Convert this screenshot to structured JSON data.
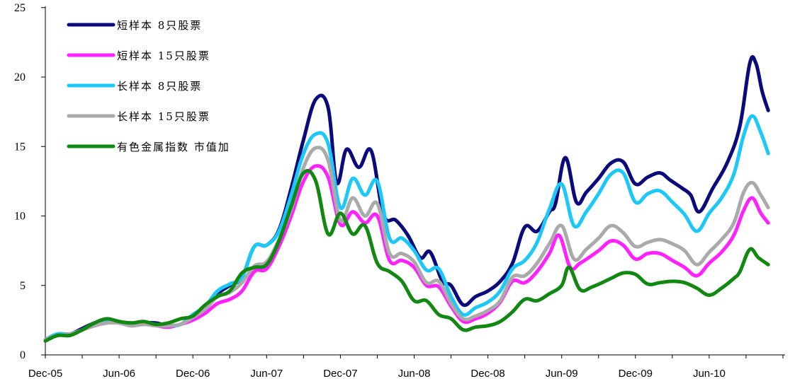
{
  "chart_data": {
    "type": "line",
    "title": "",
    "xlabel": "",
    "ylabel": "",
    "ylim": [
      0,
      25
    ],
    "yticks": [
      0,
      5,
      10,
      15,
      20,
      25
    ],
    "xlim": [
      0,
      60
    ],
    "x_ticks": [
      {
        "x": 0,
        "label": "Dec-05"
      },
      {
        "x": 6,
        "label": "Jun-06"
      },
      {
        "x": 12,
        "label": "Dec-06"
      },
      {
        "x": 18,
        "label": "Jun-07"
      },
      {
        "x": 24,
        "label": "Dec-07"
      },
      {
        "x": 30,
        "label": "Jun-08"
      },
      {
        "x": 36,
        "label": "Dec-08"
      },
      {
        "x": 42,
        "label": "Jun-09"
      },
      {
        "x": 48,
        "label": "Dec-09"
      },
      {
        "x": 54,
        "label": "Jun-10"
      }
    ],
    "x_unit": "months since Dec-05",
    "grid": false,
    "legend_position": "top-left",
    "series": [
      {
        "name": "短样本 8只股票",
        "color": "#0a0a7a",
        "points": [
          [
            0,
            1.1
          ],
          [
            1,
            1.5
          ],
          [
            2,
            1.5
          ],
          [
            3,
            1.9
          ],
          [
            4,
            2.3
          ],
          [
            5,
            2.5
          ],
          [
            6,
            2.4
          ],
          [
            7,
            2.2
          ],
          [
            8,
            2.3
          ],
          [
            9,
            2.3
          ],
          [
            10,
            2.1
          ],
          [
            11,
            2.2
          ],
          [
            12,
            2.7
          ],
          [
            13,
            3.5
          ],
          [
            14,
            4.4
          ],
          [
            15,
            5.0
          ],
          [
            16,
            5.6
          ],
          [
            17,
            7.8
          ],
          [
            18,
            7.9
          ],
          [
            19,
            9.0
          ],
          [
            20,
            12.0
          ],
          [
            21,
            15.5
          ],
          [
            22,
            18.4
          ],
          [
            23,
            17.8
          ],
          [
            23.7,
            12.4
          ],
          [
            24.5,
            14.8
          ],
          [
            25.5,
            13.5
          ],
          [
            26.5,
            14.7
          ],
          [
            27.5,
            10.1
          ],
          [
            28.5,
            9.7
          ],
          [
            29.5,
            8.6
          ],
          [
            30.5,
            7.0
          ],
          [
            31.3,
            7.4
          ],
          [
            32.3,
            5.3
          ],
          [
            33,
            5.0
          ],
          [
            34,
            3.6
          ],
          [
            35,
            4.2
          ],
          [
            36,
            4.6
          ],
          [
            37,
            5.3
          ],
          [
            38,
            6.6
          ],
          [
            39,
            9.2
          ],
          [
            40,
            8.9
          ],
          [
            41,
            10.3
          ],
          [
            41.5,
            10.9
          ],
          [
            42.3,
            14.2
          ],
          [
            43.2,
            11.0
          ],
          [
            44,
            11.7
          ],
          [
            45,
            12.7
          ],
          [
            46,
            13.8
          ],
          [
            47,
            13.9
          ],
          [
            48,
            12.3
          ],
          [
            49,
            12.8
          ],
          [
            50,
            13.1
          ],
          [
            50.8,
            12.6
          ],
          [
            51.8,
            12.0
          ],
          [
            52.5,
            11.5
          ],
          [
            53.2,
            10.3
          ],
          [
            54.3,
            12.0
          ],
          [
            55.5,
            13.9
          ],
          [
            56.5,
            16.5
          ],
          [
            57.3,
            21.0
          ],
          [
            57.8,
            21.0
          ],
          [
            58.3,
            19.0
          ],
          [
            58.8,
            17.6
          ]
        ]
      },
      {
        "name": "短样本 15只股票",
        "color": "#ff22ff",
        "points": [
          [
            0,
            1.1
          ],
          [
            1,
            1.4
          ],
          [
            2,
            1.5
          ],
          [
            3,
            1.8
          ],
          [
            4,
            2.1
          ],
          [
            5,
            2.3
          ],
          [
            6,
            2.3
          ],
          [
            7,
            2.1
          ],
          [
            8,
            2.2
          ],
          [
            9,
            2.1
          ],
          [
            10,
            2.0
          ],
          [
            11,
            2.2
          ],
          [
            12,
            2.5
          ],
          [
            13,
            3.0
          ],
          [
            14,
            3.7
          ],
          [
            15,
            4.0
          ],
          [
            16,
            4.6
          ],
          [
            17,
            6.0
          ],
          [
            18,
            6.2
          ],
          [
            19,
            7.8
          ],
          [
            20,
            10.0
          ],
          [
            21,
            12.5
          ],
          [
            22,
            13.6
          ],
          [
            23,
            12.8
          ],
          [
            24,
            9.4
          ],
          [
            25,
            10.3
          ],
          [
            26,
            9.5
          ],
          [
            27,
            10.0
          ],
          [
            28,
            6.8
          ],
          [
            29,
            6.8
          ],
          [
            30,
            6.3
          ],
          [
            31,
            5.0
          ],
          [
            32,
            4.9
          ],
          [
            33,
            3.5
          ],
          [
            34,
            2.4
          ],
          [
            35,
            2.6
          ],
          [
            36,
            3.0
          ],
          [
            37,
            3.8
          ],
          [
            38,
            5.3
          ],
          [
            39,
            5.2
          ],
          [
            40,
            6.0
          ],
          [
            41,
            7.3
          ],
          [
            41.8,
            8.6
          ],
          [
            42.7,
            6.3
          ],
          [
            43.5,
            6.6
          ],
          [
            45,
            7.5
          ],
          [
            46,
            8.2
          ],
          [
            47,
            7.9
          ],
          [
            48,
            6.9
          ],
          [
            49,
            7.3
          ],
          [
            50,
            7.3
          ],
          [
            51,
            6.8
          ],
          [
            52,
            6.3
          ],
          [
            53,
            5.7
          ],
          [
            54,
            6.6
          ],
          [
            55,
            7.4
          ],
          [
            56,
            8.6
          ],
          [
            56.8,
            10.4
          ],
          [
            57.5,
            11.3
          ],
          [
            58.2,
            10.2
          ],
          [
            58.8,
            9.5
          ]
        ]
      },
      {
        "name": "长样本 8只股票",
        "color": "#1cc8f8",
        "points": [
          [
            0,
            1.1
          ],
          [
            1,
            1.5
          ],
          [
            2,
            1.5
          ],
          [
            3,
            1.8
          ],
          [
            4,
            2.3
          ],
          [
            5,
            2.5
          ],
          [
            6,
            2.4
          ],
          [
            7,
            2.2
          ],
          [
            8,
            2.3
          ],
          [
            9,
            2.1
          ],
          [
            10,
            2.1
          ],
          [
            11,
            2.2
          ],
          [
            12,
            2.9
          ],
          [
            13,
            3.5
          ],
          [
            14,
            4.6
          ],
          [
            15,
            5.1
          ],
          [
            16,
            5.6
          ],
          [
            17,
            7.8
          ],
          [
            18,
            7.9
          ],
          [
            19,
            8.9
          ],
          [
            20,
            11.5
          ],
          [
            21,
            14.5
          ],
          [
            22,
            15.9
          ],
          [
            23,
            15.2
          ],
          [
            24,
            10.6
          ],
          [
            25,
            12.7
          ],
          [
            26,
            11.5
          ],
          [
            27,
            12.5
          ],
          [
            28,
            8.4
          ],
          [
            29,
            8.4
          ],
          [
            30,
            7.5
          ],
          [
            31,
            6.1
          ],
          [
            32,
            6.2
          ],
          [
            33,
            4.2
          ],
          [
            34,
            2.9
          ],
          [
            35,
            3.4
          ],
          [
            36,
            3.8
          ],
          [
            37,
            4.6
          ],
          [
            38,
            6.2
          ],
          [
            39,
            6.8
          ],
          [
            40,
            8.1
          ],
          [
            41,
            10.5
          ],
          [
            42,
            12.3
          ],
          [
            43,
            9.3
          ],
          [
            44,
            10.3
          ],
          [
            45,
            11.6
          ],
          [
            46,
            13.0
          ],
          [
            47,
            13.1
          ],
          [
            48,
            11.0
          ],
          [
            49,
            11.6
          ],
          [
            50,
            11.8
          ],
          [
            51,
            11.0
          ],
          [
            52,
            10.1
          ],
          [
            53,
            8.9
          ],
          [
            54,
            10.2
          ],
          [
            55,
            11.3
          ],
          [
            56,
            13.0
          ],
          [
            56.8,
            15.8
          ],
          [
            57.5,
            17.2
          ],
          [
            58.2,
            16.0
          ],
          [
            58.8,
            14.5
          ]
        ]
      },
      {
        "name": "长样本 15只股票",
        "color": "#aaaaaa",
        "points": [
          [
            0,
            1.1
          ],
          [
            1,
            1.4
          ],
          [
            2,
            1.5
          ],
          [
            3,
            1.8
          ],
          [
            4,
            2.1
          ],
          [
            5,
            2.3
          ],
          [
            6,
            2.3
          ],
          [
            7,
            2.1
          ],
          [
            8,
            2.2
          ],
          [
            9,
            2.1
          ],
          [
            10,
            2.1
          ],
          [
            11,
            2.2
          ],
          [
            12,
            2.7
          ],
          [
            13,
            3.3
          ],
          [
            14,
            4.2
          ],
          [
            15,
            4.5
          ],
          [
            16,
            5.2
          ],
          [
            17,
            6.4
          ],
          [
            18,
            6.7
          ],
          [
            19,
            8.3
          ],
          [
            20,
            10.5
          ],
          [
            21,
            13.5
          ],
          [
            22,
            14.9
          ],
          [
            23,
            14.0
          ],
          [
            24,
            9.7
          ],
          [
            25,
            11.3
          ],
          [
            26,
            10.0
          ],
          [
            27,
            10.9
          ],
          [
            28,
            7.3
          ],
          [
            29,
            7.3
          ],
          [
            30,
            6.7
          ],
          [
            31,
            5.2
          ],
          [
            32,
            5.3
          ],
          [
            33,
            3.7
          ],
          [
            34,
            2.6
          ],
          [
            35,
            2.8
          ],
          [
            36,
            3.2
          ],
          [
            37,
            3.9
          ],
          [
            38,
            5.6
          ],
          [
            39,
            5.7
          ],
          [
            40,
            6.6
          ],
          [
            41,
            8.0
          ],
          [
            42,
            9.3
          ],
          [
            43,
            6.9
          ],
          [
            44,
            7.6
          ],
          [
            45,
            8.4
          ],
          [
            46,
            9.3
          ],
          [
            47,
            8.8
          ],
          [
            48,
            7.8
          ],
          [
            49,
            8.1
          ],
          [
            50,
            8.3
          ],
          [
            51,
            8.0
          ],
          [
            52,
            7.5
          ],
          [
            53,
            6.5
          ],
          [
            54,
            7.4
          ],
          [
            55,
            8.3
          ],
          [
            56,
            9.5
          ],
          [
            56.8,
            11.7
          ],
          [
            57.5,
            12.4
          ],
          [
            58.2,
            11.5
          ],
          [
            58.8,
            10.6
          ]
        ]
      },
      {
        "name": "有色金属指数 市值加",
        "color": "#118811",
        "points": [
          [
            0,
            1.0
          ],
          [
            1,
            1.4
          ],
          [
            2,
            1.4
          ],
          [
            3,
            1.8
          ],
          [
            4,
            2.3
          ],
          [
            5,
            2.6
          ],
          [
            6,
            2.4
          ],
          [
            7,
            2.3
          ],
          [
            8,
            2.4
          ],
          [
            9,
            2.2
          ],
          [
            10,
            2.3
          ],
          [
            11,
            2.6
          ],
          [
            12,
            2.8
          ],
          [
            13,
            3.6
          ],
          [
            14,
            4.2
          ],
          [
            15,
            4.6
          ],
          [
            16,
            5.9
          ],
          [
            17,
            6.3
          ],
          [
            18,
            6.5
          ],
          [
            19,
            8.2
          ],
          [
            20,
            10.7
          ],
          [
            21,
            13.1
          ],
          [
            22,
            12.5
          ],
          [
            23,
            8.7
          ],
          [
            24,
            10.2
          ],
          [
            25,
            8.7
          ],
          [
            26,
            9.3
          ],
          [
            27,
            6.6
          ],
          [
            28,
            6.0
          ],
          [
            29,
            5.3
          ],
          [
            30,
            3.9
          ],
          [
            31,
            3.9
          ],
          [
            32,
            2.9
          ],
          [
            33,
            2.6
          ],
          [
            34,
            1.8
          ],
          [
            35,
            2.0
          ],
          [
            36,
            2.1
          ],
          [
            37,
            2.4
          ],
          [
            38,
            3.1
          ],
          [
            39,
            4.0
          ],
          [
            40,
            3.9
          ],
          [
            41,
            4.4
          ],
          [
            42,
            5.0
          ],
          [
            42.6,
            6.3
          ],
          [
            43.5,
            4.7
          ],
          [
            44.5,
            4.9
          ],
          [
            46,
            5.5
          ],
          [
            47,
            5.9
          ],
          [
            48,
            5.8
          ],
          [
            49,
            5.1
          ],
          [
            50,
            5.2
          ],
          [
            51,
            5.3
          ],
          [
            52,
            5.2
          ],
          [
            53,
            4.8
          ],
          [
            54,
            4.3
          ],
          [
            55,
            4.8
          ],
          [
            56,
            5.5
          ],
          [
            56.5,
            6.0
          ],
          [
            57.3,
            7.6
          ],
          [
            58,
            7.0
          ],
          [
            58.8,
            6.5
          ]
        ]
      }
    ]
  }
}
